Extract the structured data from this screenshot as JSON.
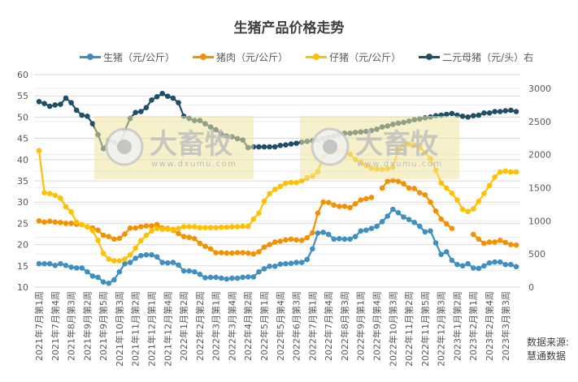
{
  "chart_data": {
    "type": "line",
    "title": "生猪产品价格走势",
    "x_tick_labels": [
      "2021年7月第1周",
      "2021年7月第4周",
      "2021年8月第3周",
      "2021年9月第2周",
      "2021年9月第5周",
      "2021年10月第3周",
      "2021年11月第2周",
      "2021年12月第1周",
      "2021年12月第4周",
      "2022年1月第2周",
      "2022年2月第2周",
      "2022年3月第1周",
      "2022年3月第4周",
      "2022年4月第2周",
      "2022年5月第1周",
      "2022年5月第4周",
      "2022年6月第3周",
      "2022年7月第1周",
      "2022年7月第4周",
      "2022年8月第3周",
      "2022年9月第1周",
      "2022年9月第4周",
      "2022年10月第3周",
      "2022年11月第2周",
      "2022年11月第5周",
      "2022年12月第3周",
      "2023年1月第2周",
      "2023年2月第1周",
      "2023年2月第4周",
      "2023年3月第3周"
    ],
    "x_tick_every": 3,
    "y_left": {
      "min": 10,
      "max": 60,
      "step": 5,
      "ticks": [
        "10",
        "15",
        "20",
        "25",
        "30",
        "35",
        "40",
        "45",
        "50",
        "55",
        "60"
      ]
    },
    "y_right": {
      "min": 0,
      "max": 3000,
      "step": 500,
      "ticks": [
        "0",
        "500",
        "1000",
        "1500",
        "2000",
        "2500",
        "3000"
      ]
    },
    "grid": true,
    "legend_position": "top",
    "series": [
      {
        "name": "生猪（元/公斤）",
        "axis": "left",
        "color": "#3f8fbf",
        "values": [
          15.5,
          15.5,
          15.5,
          15.1,
          15.5,
          15.1,
          14.7,
          14.5,
          14.5,
          13.6,
          12.6,
          12.3,
          11.2,
          10.9,
          11.7,
          13.6,
          15.5,
          15.8,
          16.8,
          17.4,
          17.6,
          17.6,
          17.1,
          15.8,
          15.7,
          15.8,
          15.2,
          13.8,
          13.8,
          13.6,
          13.0,
          12.2,
          12.3,
          12.3,
          12.1,
          11.9,
          12.1,
          12.1,
          12.3,
          12.4,
          12.4,
          13.6,
          14.3,
          14.9,
          14.9,
          15.4,
          15.5,
          15.6,
          15.8,
          15.8,
          16.5,
          19.0,
          22.7,
          22.9,
          22.4,
          21.3,
          21.4,
          21.3,
          21.3,
          21.9,
          23.2,
          23.4,
          23.8,
          24.3,
          25.4,
          26.7,
          28.3,
          27.5,
          26.5,
          25.9,
          25.2,
          24.3,
          23.0,
          23.2,
          20.4,
          17.7,
          18.3,
          16.3,
          15.3,
          15.0,
          15.5,
          14.5,
          14.4,
          15.0,
          15.7,
          15.9,
          15.9,
          15.3,
          15.3,
          14.8
        ]
      },
      {
        "name": "猪肉（元/公斤）",
        "axis": "left",
        "color": "#f39200",
        "values": [
          25.6,
          25.3,
          25.5,
          25.3,
          25.2,
          25.0,
          25.0,
          24.8,
          24.7,
          24.2,
          23.9,
          23.4,
          22.2,
          21.9,
          21.3,
          21.5,
          22.5,
          23.9,
          23.9,
          24.2,
          24.4,
          24.4,
          24.7,
          23.9,
          23.8,
          23.4,
          22.6,
          21.9,
          21.7,
          21.4,
          20.3,
          19.6,
          19.0,
          18.1,
          18.1,
          18.0,
          18.0,
          18.1,
          18.1,
          18.0,
          17.8,
          18.3,
          19.4,
          20.0,
          20.6,
          20.8,
          21.1,
          21.3,
          21.1,
          21.0,
          21.6,
          22.8,
          27.4,
          30.0,
          29.9,
          29.3,
          29.0,
          29.0,
          28.7,
          29.6,
          30.5,
          30.8,
          31.1,
          null,
          33.3,
          34.9,
          35.1,
          34.9,
          34.3,
          33.3,
          33.2,
          32.2,
          31.7,
          30.0,
          27.9,
          26.0,
          24.9,
          23.8,
          null,
          null,
          null,
          22.4,
          21.3,
          20.3,
          20.6,
          20.6,
          21.0,
          20.5,
          20.0,
          19.9
        ]
      },
      {
        "name": "仔猪（元/公斤）",
        "axis": "left",
        "color": "#ffc000",
        "values": [
          42.1,
          32.2,
          32.0,
          31.6,
          30.9,
          28.9,
          27.7,
          25.3,
          24.7,
          24.2,
          23.3,
          21.0,
          17.9,
          16.6,
          16.2,
          16.2,
          16.6,
          17.6,
          19.2,
          20.9,
          22.2,
          23.2,
          23.8,
          23.6,
          23.6,
          23.6,
          23.8,
          24.2,
          24.2,
          24.2,
          24.0,
          24.0,
          24.0,
          24.0,
          24.1,
          24.1,
          24.2,
          24.2,
          24.3,
          24.3,
          26.0,
          27.4,
          30.2,
          32.0,
          33.0,
          33.7,
          34.4,
          34.6,
          34.6,
          35.0,
          35.7,
          36.1,
          37.2,
          40.7,
          41.7,
          42.0,
          41.9,
          41.9,
          41.3,
          40.0,
          39.4,
          38.6,
          38.0,
          37.8,
          37.7,
          37.9,
          38.2,
          42.3,
          43.5,
          43.6,
          43.4,
          42.9,
          41.6,
          40.2,
          37.5,
          34.5,
          33.3,
          32.1,
          30.5,
          28.3,
          27.8,
          28.4,
          30.2,
          32.0,
          33.9,
          35.9,
          37.1,
          37.3,
          37.1,
          37.1
        ]
      },
      {
        "name": "二元母猪（元/头）右",
        "axis": "right",
        "color": "#1f4e66",
        "values": [
          2800,
          2771,
          2730,
          2750,
          2760,
          2853,
          2784,
          2670,
          2596,
          2580,
          2466,
          2302,
          2090,
          2213,
          2188,
          2119,
          2364,
          2547,
          2637,
          2650,
          2710,
          2825,
          2874,
          2923,
          2882,
          2853,
          2784,
          2580,
          2547,
          2515,
          2515,
          2466,
          2417,
          2376,
          2310,
          2282,
          2270,
          2241,
          2221,
          2106,
          2118,
          2118,
          2118,
          2118,
          2118,
          2139,
          2147,
          2160,
          2172,
          2188,
          2200,
          2213,
          2221,
          2241,
          2262,
          2282,
          2302,
          2323,
          2323,
          2335,
          2343,
          2351,
          2364,
          2384,
          2417,
          2433,
          2457,
          2474,
          2486,
          2506,
          2527,
          2539,
          2555,
          2568,
          2588,
          2596,
          2608,
          2621,
          2596,
          2580,
          2568,
          2588,
          2596,
          2629,
          2629,
          2650,
          2650,
          2662,
          2670,
          2650
        ]
      }
    ]
  },
  "watermark": {
    "text": "大畜牧",
    "url": "www.dxumu.com"
  },
  "source": {
    "line1": "数据来源:",
    "line2": "慧通数据"
  }
}
